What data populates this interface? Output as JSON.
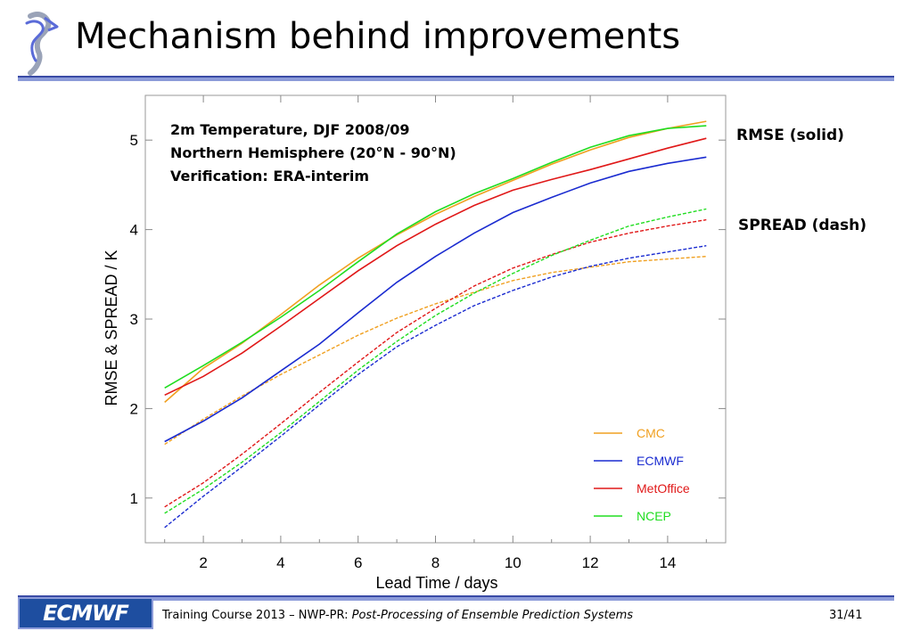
{
  "slide": {
    "title": "Mechanism behind improvements",
    "rmse_note": "RMSE (solid)",
    "spread_note": "SPREAD (dash)"
  },
  "footer": {
    "logo_text": "ECMWF",
    "course": "Training Course 2013 – NWP-PR: ",
    "course_title": "Post-Processing of Ensemble Prediction Systems",
    "page": "31/41"
  },
  "colors": {
    "CMC": "#f0a020",
    "ECMWF": "#1a2bd0",
    "MetOffice": "#e01818",
    "NCEP": "#20dd20",
    "rule": "#8c9bd9"
  },
  "chart_data": {
    "type": "line",
    "annotation_lines": [
      "2m Temperature, DJF 2008/09",
      "Northern Hemisphere (20°N - 90°N)",
      "Verification: ERA-interim"
    ],
    "xlabel": "Lead Time / days",
    "ylabel": "RMSE & SPREAD / K",
    "xlim": [
      0.5,
      15.5
    ],
    "ylim": [
      0.5,
      5.5
    ],
    "xticks": [
      2,
      4,
      6,
      8,
      10,
      12,
      14
    ],
    "yticks": [
      1,
      2,
      3,
      4,
      5
    ],
    "legend_position": "bottom-right",
    "legend": [
      "CMC",
      "ECMWF",
      "MetOffice",
      "NCEP"
    ],
    "x": [
      1,
      2,
      3,
      4,
      5,
      6,
      7,
      8,
      9,
      10,
      11,
      12,
      13,
      14,
      15
    ],
    "rmse": [
      {
        "name": "CMC",
        "values": [
          2.07,
          2.45,
          2.73,
          3.05,
          3.38,
          3.68,
          3.94,
          4.17,
          4.37,
          4.55,
          4.73,
          4.89,
          5.03,
          5.13,
          5.21
        ]
      },
      {
        "name": "ECMWF",
        "values": [
          1.63,
          1.86,
          2.12,
          2.42,
          2.72,
          3.07,
          3.41,
          3.7,
          3.96,
          4.19,
          4.36,
          4.52,
          4.65,
          4.74,
          4.81
        ]
      },
      {
        "name": "MetOffice",
        "values": [
          2.15,
          2.36,
          2.62,
          2.92,
          3.23,
          3.54,
          3.82,
          4.06,
          4.27,
          4.44,
          4.56,
          4.67,
          4.79,
          4.91,
          5.02
        ]
      },
      {
        "name": "NCEP",
        "values": [
          2.23,
          2.48,
          2.74,
          3.02,
          3.32,
          3.64,
          3.95,
          4.2,
          4.4,
          4.57,
          4.75,
          4.92,
          5.05,
          5.13,
          5.16
        ]
      }
    ],
    "spread": [
      {
        "name": "CMC",
        "values": [
          1.6,
          1.88,
          2.14,
          2.38,
          2.6,
          2.82,
          3.01,
          3.17,
          3.3,
          3.43,
          3.52,
          3.58,
          3.64,
          3.67,
          3.7
        ]
      },
      {
        "name": "ECMWF",
        "values": [
          0.67,
          1.02,
          1.35,
          1.69,
          2.04,
          2.38,
          2.69,
          2.93,
          3.15,
          3.32,
          3.47,
          3.59,
          3.68,
          3.75,
          3.82
        ]
      },
      {
        "name": "MetOffice",
        "values": [
          0.9,
          1.17,
          1.49,
          1.83,
          2.18,
          2.52,
          2.85,
          3.12,
          3.37,
          3.57,
          3.72,
          3.86,
          3.96,
          4.04,
          4.11
        ]
      },
      {
        "name": "NCEP",
        "values": [
          0.83,
          1.1,
          1.4,
          1.73,
          2.08,
          2.43,
          2.75,
          3.04,
          3.29,
          3.51,
          3.71,
          3.88,
          4.04,
          4.14,
          4.23
        ]
      }
    ]
  }
}
